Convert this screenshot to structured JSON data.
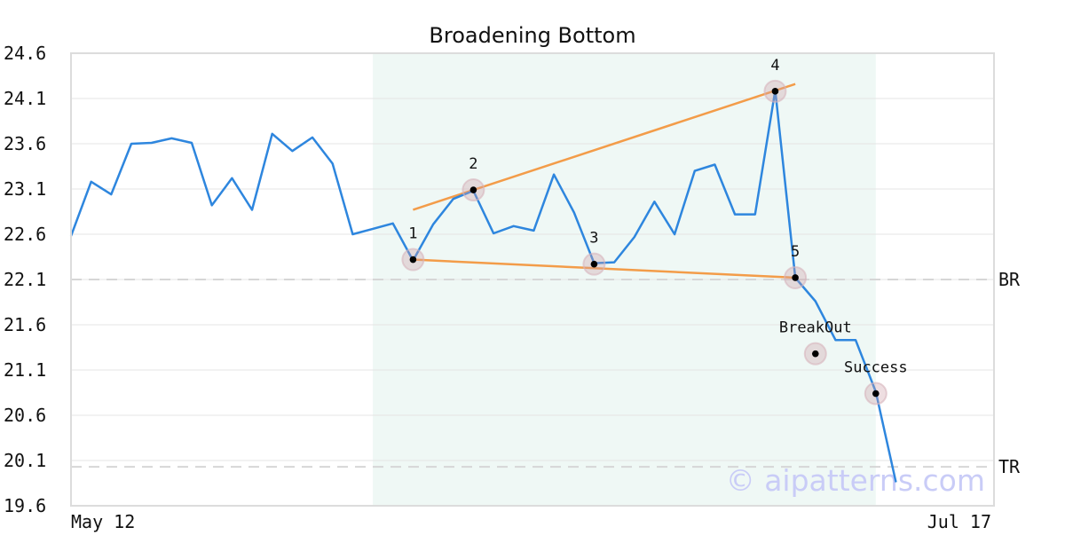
{
  "chart_data": {
    "type": "line",
    "title": "Broadening Bottom",
    "y_ticks": [
      "24.6",
      "24.1",
      "23.6",
      "23.1",
      "22.6",
      "22.1",
      "21.6",
      "21.1",
      "20.6",
      "20.1",
      "19.6"
    ],
    "ylim": [
      19.6,
      24.6
    ],
    "x_tick_labels": [
      "May 12",
      "Jul 17"
    ],
    "grid": true,
    "series": [
      {
        "color": "#2e86de",
        "values": [
          22.58,
          23.18,
          23.04,
          23.6,
          23.61,
          23.66,
          23.61,
          22.92,
          23.22,
          22.87,
          23.71,
          23.52,
          23.67,
          23.38,
          22.6,
          22.66,
          22.72,
          22.31,
          22.71,
          22.99,
          23.08,
          22.61,
          22.69,
          22.64,
          23.26,
          22.84,
          22.28,
          22.29,
          22.57,
          22.96,
          22.6,
          23.3,
          23.37,
          22.82,
          22.82,
          24.19,
          22.12,
          21.86,
          21.43,
          21.43,
          20.86,
          19.86
        ]
      }
    ],
    "pattern_region": {
      "x_start": 15,
      "x_end": 40,
      "color": "#eaf5f2"
    },
    "trendlines": [
      {
        "color": "#f39c49",
        "from": {
          "x": 17,
          "y": 22.87
        },
        "to": {
          "x": 36,
          "y": 24.26
        }
      },
      {
        "color": "#f39c49",
        "from": {
          "x": 17,
          "y": 22.32
        },
        "to": {
          "x": 36,
          "y": 22.12
        }
      }
    ],
    "points": [
      {
        "label": "1",
        "x": 17,
        "y": 22.32,
        "label_pos": "above"
      },
      {
        "label": "2",
        "x": 20,
        "y": 23.09,
        "label_pos": "above"
      },
      {
        "label": "3",
        "x": 26,
        "y": 22.27,
        "label_pos": "above"
      },
      {
        "label": "4",
        "x": 35,
        "y": 24.18,
        "label_pos": "above"
      },
      {
        "label": "5",
        "x": 36,
        "y": 22.12,
        "label_pos": "above"
      },
      {
        "label": "BreakOut",
        "x": 37,
        "y": 21.28,
        "label_pos": "above"
      },
      {
        "label": "Success",
        "x": 40,
        "y": 20.84,
        "label_pos": "above"
      }
    ],
    "levels": [
      {
        "label": "BR",
        "y": 22.1
      },
      {
        "label": "TR",
        "y": 20.03
      }
    ],
    "watermark": "© aipatterns.com"
  }
}
